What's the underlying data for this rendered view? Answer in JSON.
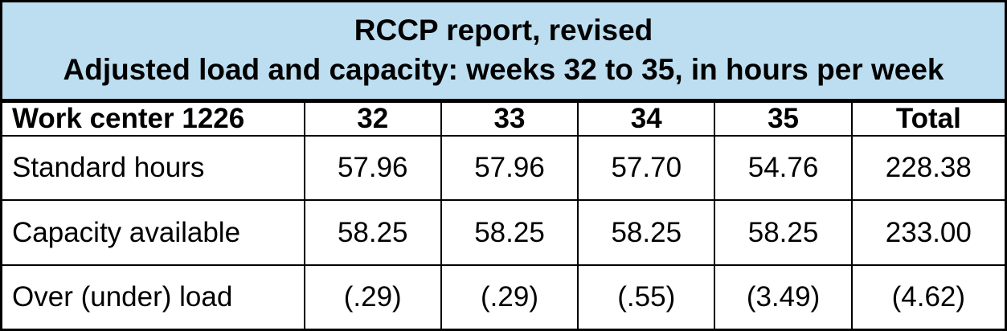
{
  "banner": {
    "line1": "RCCP report, revised",
    "line2": "Adjusted load and capacity: weeks 32 to 35, in hours per week"
  },
  "table": {
    "header": [
      "Work center 1226",
      "32",
      "33",
      "34",
      "35",
      "Total"
    ],
    "rows": [
      {
        "label": "Standard hours",
        "values": [
          "57.96",
          "57.96",
          "57.70",
          "54.76",
          "228.38"
        ]
      },
      {
        "label": "Capacity available",
        "values": [
          "58.25",
          "58.25",
          "58.25",
          "58.25",
          "233.00"
        ]
      },
      {
        "label": "Over (under) load",
        "values": [
          "(.29)",
          "(.29)",
          "(.55)",
          "(3.49)",
          "(4.62)"
        ]
      }
    ]
  },
  "chart_data": {
    "type": "table",
    "title": "RCCP report, revised",
    "subtitle": "Adjusted load and capacity: weeks 32 to 35, in hours per week",
    "columns": [
      "Work center 1226",
      "32",
      "33",
      "34",
      "35",
      "Total"
    ],
    "rows": [
      [
        "Standard hours",
        57.96,
        57.96,
        57.7,
        54.76,
        228.38
      ],
      [
        "Capacity available",
        58.25,
        58.25,
        58.25,
        58.25,
        233.0
      ],
      [
        "Over (under) load",
        -0.29,
        -0.29,
        -0.55,
        -3.49,
        -4.62
      ]
    ]
  },
  "colors": {
    "banner_background": "#BCDEF0",
    "border": "#000000",
    "table_background": "#FFFFFF",
    "text": "#000000"
  }
}
